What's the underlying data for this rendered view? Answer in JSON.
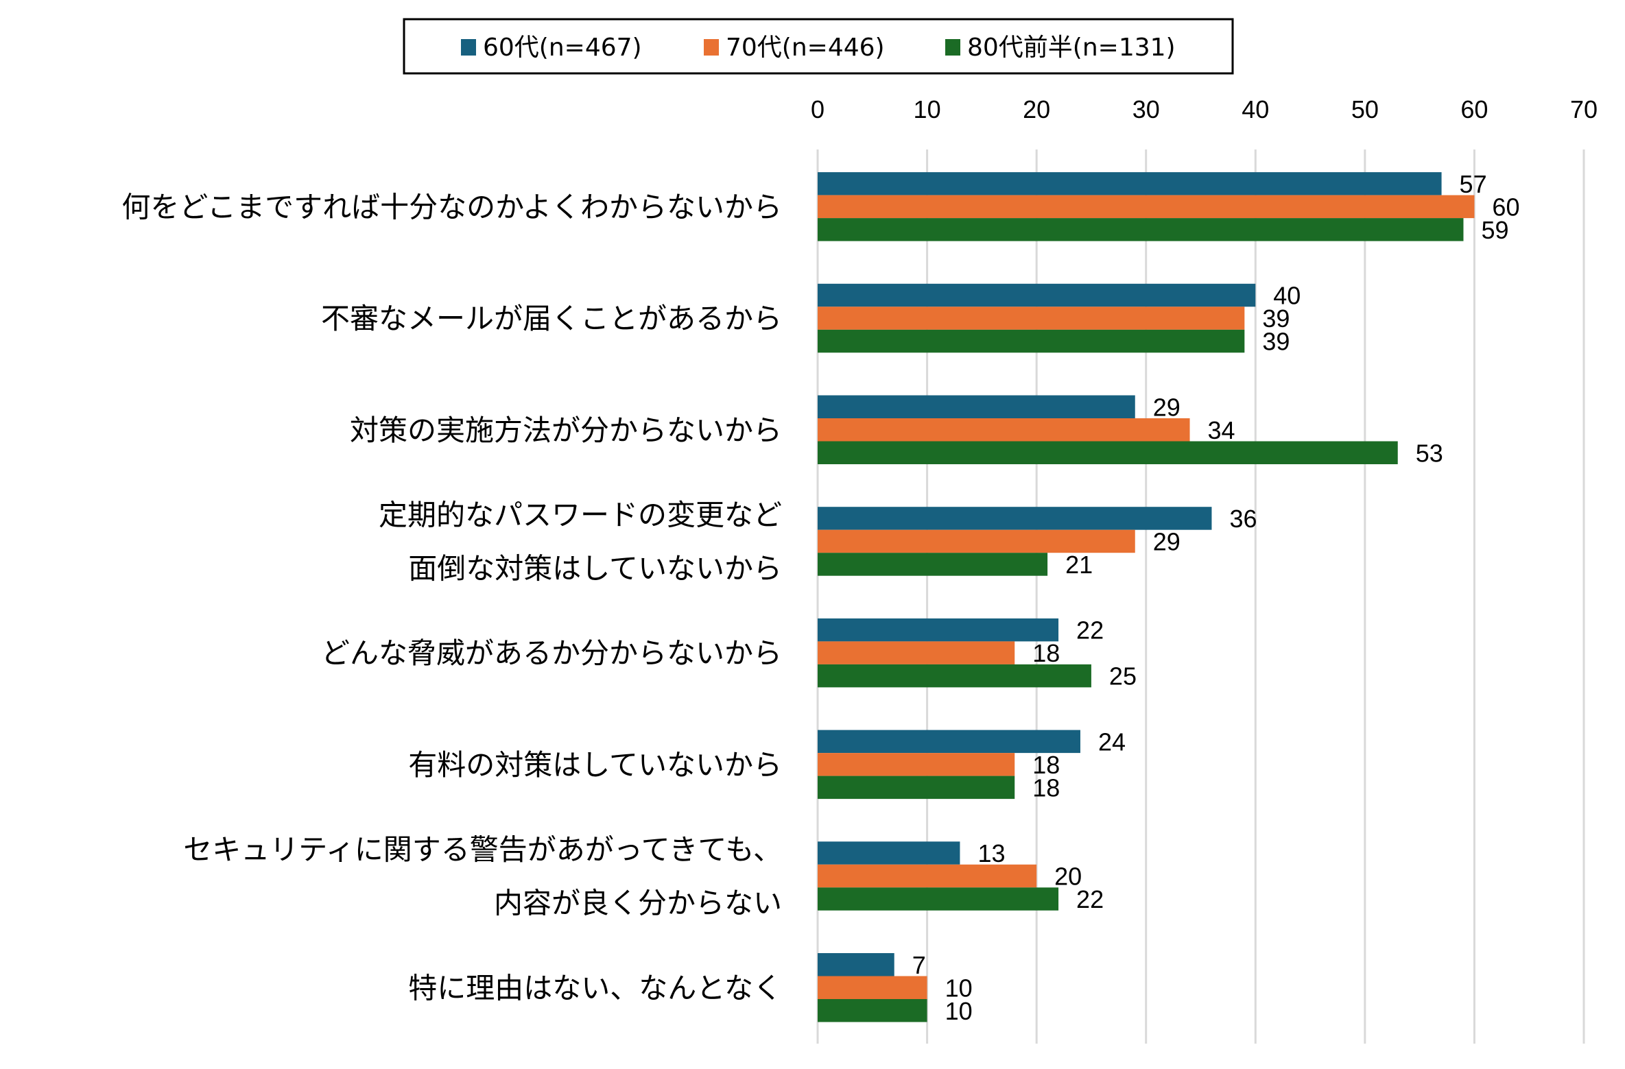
{
  "chart_data": {
    "type": "bar",
    "orientation": "horizontal",
    "title": "",
    "xlabel": "",
    "ylabel": "",
    "xlim": [
      0,
      70
    ],
    "xticks": [
      0,
      10,
      20,
      30,
      40,
      50,
      60,
      70
    ],
    "grid": true,
    "legend_position": "top",
    "categories": [
      [
        "何をどこまですれば十分なのかよくわからないから"
      ],
      [
        "不審なメールが届くことがあるから"
      ],
      [
        "対策の実施方法が分からないから"
      ],
      [
        "定期的なパスワードの変更など",
        "面倒な対策はしていないから"
      ],
      [
        "どんな脅威があるか分からないから"
      ],
      [
        "有料の対策はしていないから"
      ],
      [
        "セキュリティに関する警告があがってきても、",
        "内容が良く分からない"
      ],
      [
        "特に理由はない、なんとなく"
      ]
    ],
    "series": [
      {
        "name": "60代(n=467)",
        "color": "#17607f",
        "values": [
          57,
          40,
          29,
          36,
          22,
          24,
          13,
          7
        ]
      },
      {
        "name": "70代(n=446)",
        "color": "#e97132",
        "values": [
          60,
          39,
          34,
          29,
          18,
          18,
          20,
          10
        ]
      },
      {
        "name": "80代前半(n=131)",
        "color": "#1b6b25",
        "values": [
          59,
          39,
          53,
          21,
          25,
          18,
          22,
          10
        ]
      }
    ]
  }
}
